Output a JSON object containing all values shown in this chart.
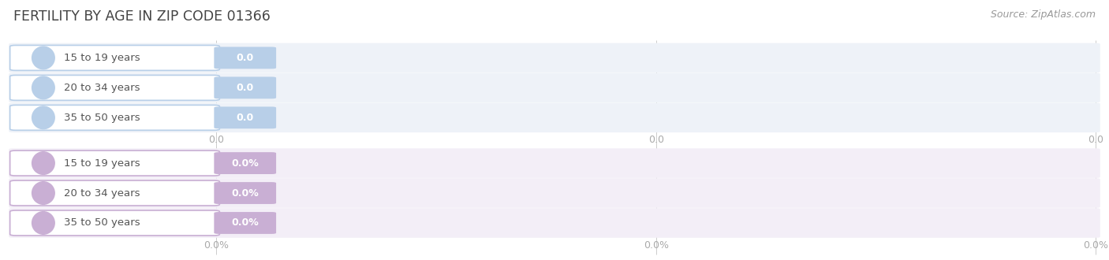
{
  "title": "FERTILITY BY AGE IN ZIP CODE 01366",
  "source_text": "Source: ZipAtlas.com",
  "categories": [
    "15 to 19 years",
    "20 to 34 years",
    "35 to 50 years"
  ],
  "group1_value_labels": [
    "0.0",
    "0.0",
    "0.0"
  ],
  "group2_value_labels": [
    "0.0%",
    "0.0%",
    "0.0%"
  ],
  "group1_circle_color": "#b8cfe8",
  "group1_badge_color": "#b8cfe8",
  "group1_row_bg": "#eef2f8",
  "group2_circle_color": "#c9afd4",
  "group2_badge_color": "#c9afd4",
  "group2_row_bg": "#f3eef7",
  "row_bg_color": "#f2f2f2",
  "xtick_labels_group1": [
    "0.0",
    "0.0",
    "0.0"
  ],
  "xtick_labels_group2": [
    "0.0%",
    "0.0%",
    "0.0%"
  ],
  "bg_color": "#ffffff",
  "title_color": "#444444",
  "title_fontsize": 12.5,
  "label_fontsize": 9.5,
  "tick_fontsize": 9,
  "source_fontsize": 9,
  "source_color": "#999999",
  "tick_color": "#aaaaaa",
  "grid_line_color": "#cccccc",
  "label_text_color": "#555555"
}
